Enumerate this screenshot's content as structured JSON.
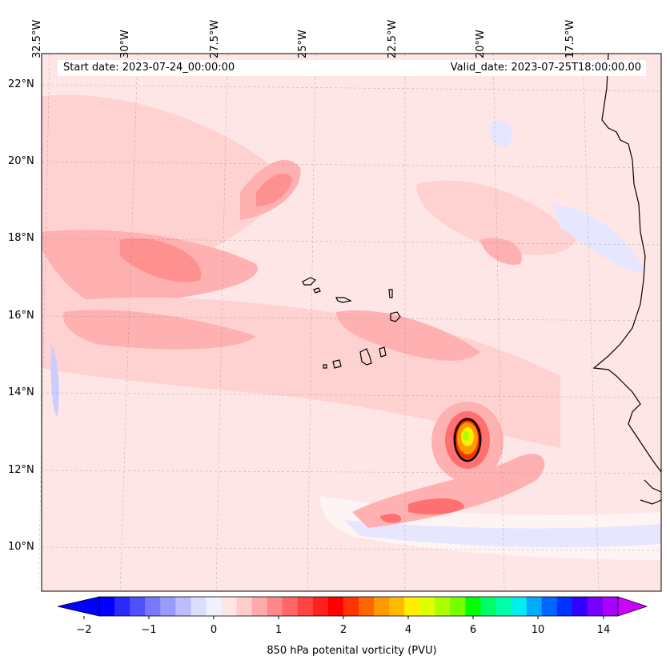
{
  "map": {
    "start_date": "Start date: 2023-07-24_00:00:00",
    "valid_date": "Valid_date: 2023-07-25T18:00:00.00",
    "lon_labels": [
      "32.5°W",
      "30°W",
      "27.5°W",
      "25°W",
      "22.5°W",
      "20°W",
      "17.5°W"
    ],
    "lat_labels": [
      "22°N",
      "20°N",
      "18°N",
      "16°N",
      "14°N",
      "12°N",
      "10°N"
    ],
    "colors": {
      "background_field": "#ffe6e6",
      "light_pink": "#ffd2d2",
      "pink": "#ffb0b0",
      "light_red": "#ff9090",
      "red": "#ff5050",
      "light_blue": "#e6e6ff",
      "coast": "#000000"
    }
  },
  "colorbar": {
    "label": "850 hPa potenital vorticity (PVU)",
    "ticks": [
      "−2",
      "−1",
      "0",
      "1",
      "2",
      "4",
      "6",
      "10",
      "14"
    ],
    "colors": [
      "#0000ff",
      "#2a2aff",
      "#5050ff",
      "#7878ff",
      "#9a9aff",
      "#bcbcff",
      "#dcdcff",
      "#f0f0ff",
      "#ffe6e6",
      "#ffcccc",
      "#ffaaaa",
      "#ff8888",
      "#ff6666",
      "#ff4444",
      "#ff2020",
      "#ff0000",
      "#ff3300",
      "#ff6600",
      "#ff9900",
      "#ffbb00",
      "#ffee00",
      "#ddff00",
      "#aaff00",
      "#77ff00",
      "#00ff00",
      "#00ff66",
      "#00ffaa",
      "#00eeee",
      "#00aaff",
      "#0066ff",
      "#0033ff",
      "#3300ff",
      "#7700ff",
      "#aa00ff"
    ],
    "extend_left_color": "#0000ff",
    "extend_right_color": "#cc00ff"
  }
}
